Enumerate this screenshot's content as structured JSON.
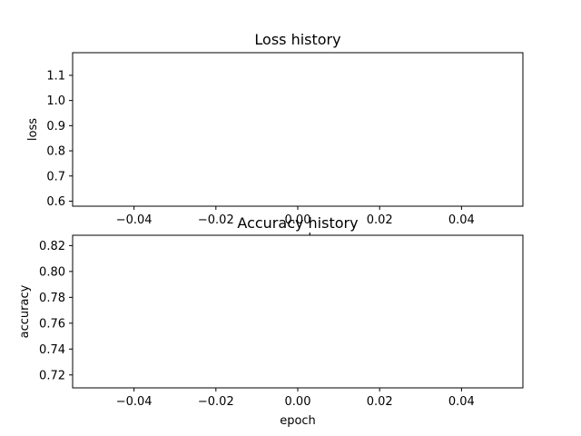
{
  "chart_data": [
    {
      "type": "line",
      "title": "Loss history",
      "xlabel": "epoch",
      "ylabel": "loss",
      "xlim": [
        -0.055,
        0.055
      ],
      "ylim": [
        0.58,
        1.19
      ],
      "x_ticks": [
        "−0.04",
        "−0.02",
        "0.00",
        "0.02",
        "0.04"
      ],
      "x_tick_values": [
        -0.04,
        -0.02,
        0.0,
        0.02,
        0.04
      ],
      "y_ticks": [
        "0.6",
        "0.7",
        "0.8",
        "0.9",
        "1.0",
        "1.1"
      ],
      "y_tick_values": [
        0.6,
        0.7,
        0.8,
        0.9,
        1.0,
        1.1
      ],
      "grid": false,
      "series": []
    },
    {
      "type": "line",
      "title": "Accuracy history",
      "xlabel": "epoch",
      "ylabel": "accuracy",
      "xlim": [
        -0.055,
        0.055
      ],
      "ylim": [
        0.71,
        0.828
      ],
      "x_ticks": [
        "−0.04",
        "−0.02",
        "0.00",
        "0.02",
        "0.04"
      ],
      "x_tick_values": [
        -0.04,
        -0.02,
        0.0,
        0.02,
        0.04
      ],
      "y_ticks": [
        "0.72",
        "0.74",
        "0.76",
        "0.78",
        "0.80",
        "0.82"
      ],
      "y_tick_values": [
        0.72,
        0.74,
        0.76,
        0.78,
        0.8,
        0.82
      ],
      "grid": false,
      "series": []
    }
  ]
}
